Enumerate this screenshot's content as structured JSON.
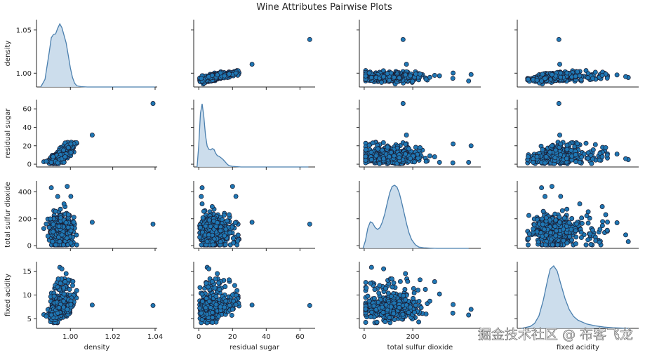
{
  "figure": {
    "title": "Wine Attributes Pairwise Plots",
    "watermark": "掘金技术社区 @ 布客飞龙"
  },
  "chart_data": {
    "type": "pairplot",
    "variables": [
      "density",
      "residual sugar",
      "total sulfur dioxide",
      "fixed acidity"
    ],
    "diag_kind": "kde",
    "colors": {
      "points": "#1f77b4",
      "point_edge": "#1a1a2e",
      "kde_fill": "#c6d9ea",
      "kde_line": "#4a7fae",
      "axis": "#262626"
    },
    "axes": {
      "density": {
        "range": [
          0.984,
          1.041
        ],
        "ticks": [
          1.0,
          1.02,
          1.04
        ],
        "tick_labels": [
          "1.00",
          "1.02",
          "1.04"
        ],
        "y_range": [
          0.984,
          1.062
        ],
        "y_ticks": [
          1.0,
          1.05
        ],
        "y_tick_labels": [
          "1.00",
          "1.05"
        ]
      },
      "residual sugar": {
        "range": [
          -3,
          69
        ],
        "ticks": [
          0,
          20,
          40,
          60
        ],
        "tick_labels": [
          "0",
          "20",
          "40",
          "60"
        ],
        "y_range": [
          -3,
          70
        ],
        "y_ticks": [
          0,
          20,
          40,
          60
        ],
        "y_tick_labels": [
          "0",
          "20",
          "40",
          "60"
        ]
      },
      "total sulfur dioxide": {
        "range": [
          -20,
          480
        ],
        "ticks": [
          0,
          200
        ],
        "tick_labels": [
          "0",
          "200"
        ],
        "y_range": [
          -20,
          480
        ],
        "y_ticks": [
          0,
          200,
          400
        ],
        "y_tick_labels": [
          "0",
          "200",
          "400"
        ]
      },
      "fixed acidity": {
        "range": [
          3.0,
          17.0
        ],
        "ticks": [],
        "tick_labels": [],
        "y_range": [
          3.0,
          17.0
        ],
        "y_ticks": [
          5,
          10,
          15
        ],
        "y_tick_labels": [
          "5",
          "10",
          "15"
        ]
      }
    },
    "kde": {
      "density": {
        "x": [
          0.986,
          0.988,
          0.99,
          0.991,
          0.992,
          0.993,
          0.994,
          0.995,
          0.996,
          0.997,
          0.998,
          0.999,
          1.0,
          1.001,
          1.002,
          1.003,
          1.005,
          1.008,
          1.04
        ],
        "y": [
          0.0,
          0.12,
          0.55,
          0.78,
          0.83,
          0.84,
          0.93,
          1.0,
          0.94,
          0.82,
          0.7,
          0.5,
          0.3,
          0.15,
          0.06,
          0.02,
          0.005,
          0.0,
          0.0
        ]
      },
      "residual sugar": {
        "x": [
          -1,
          0,
          1,
          2,
          3,
          4,
          5,
          6,
          7,
          8,
          9,
          10,
          11,
          12,
          13,
          14,
          15,
          16,
          17,
          18,
          20,
          25,
          30,
          65
        ],
        "y": [
          0.0,
          0.35,
          0.85,
          1.0,
          0.8,
          0.5,
          0.33,
          0.28,
          0.27,
          0.29,
          0.28,
          0.22,
          0.18,
          0.17,
          0.15,
          0.13,
          0.1,
          0.07,
          0.04,
          0.02,
          0.01,
          0.0,
          0.0,
          0.0
        ]
      },
      "total sulfur dioxide": {
        "x": [
          -5,
          5,
          15,
          25,
          35,
          45,
          55,
          65,
          75,
          85,
          95,
          105,
          115,
          125,
          135,
          145,
          155,
          165,
          175,
          185,
          195,
          210,
          225,
          245,
          270,
          300,
          350,
          430
        ],
        "y": [
          0.0,
          0.12,
          0.32,
          0.42,
          0.4,
          0.33,
          0.3,
          0.33,
          0.42,
          0.55,
          0.72,
          0.88,
          0.98,
          1.0,
          0.97,
          0.87,
          0.72,
          0.55,
          0.38,
          0.24,
          0.14,
          0.06,
          0.02,
          0.01,
          0.005,
          0.0,
          0.0,
          0.0
        ]
      },
      "fixed acidity": {
        "x": [
          3.5,
          4.5,
          5.0,
          5.5,
          6.0,
          6.5,
          6.8,
          7.2,
          7.6,
          8.0,
          8.5,
          9.0,
          9.5,
          10.0,
          11.0,
          12.0,
          13.0,
          14.0,
          16.0
        ],
        "y": [
          0.0,
          0.03,
          0.08,
          0.2,
          0.45,
          0.78,
          0.95,
          1.0,
          0.92,
          0.72,
          0.48,
          0.3,
          0.19,
          0.13,
          0.07,
          0.04,
          0.02,
          0.01,
          0.0
        ]
      }
    },
    "outliers": [
      {
        "density": 1.039,
        "residual sugar": 65.8,
        "total sulfur dioxide": 160,
        "fixed acidity": 7.8
      },
      {
        "density": 1.0103,
        "residual sugar": 31.6,
        "total sulfur dioxide": 174,
        "fixed acidity": 7.9
      },
      {
        "density": 0.9985,
        "residual sugar": 20.0,
        "total sulfur dioxide": 440,
        "fixed acidity": 7.0
      },
      {
        "density": 1.0002,
        "residual sugar": 22.0,
        "total sulfur dioxide": 366,
        "fixed acidity": 8.0
      },
      {
        "density": 0.993,
        "residual sugar": 3.0,
        "total sulfur dioxide": 255,
        "fixed acidity": 6.0
      },
      {
        "density": 0.991,
        "residual sugar": 2.0,
        "total sulfur dioxide": 430,
        "fixed acidity": 5.8
      },
      {
        "density": 0.995,
        "residual sugar": 5.0,
        "total sulfur dioxide": 30,
        "fixed acidity": 15.8
      },
      {
        "density": 0.996,
        "residual sugar": 6.0,
        "total sulfur dioxide": 80,
        "fixed acidity": 15.5
      },
      {
        "density": 0.998,
        "residual sugar": 11.0,
        "total sulfur dioxide": 170,
        "fixed acidity": 14.5
      },
      {
        "density": 0.999,
        "residual sugar": 18.0,
        "total sulfur dioxide": 230,
        "fixed acidity": 13.2
      },
      {
        "density": 0.9975,
        "residual sugar": 8.0,
        "total sulfur dioxide": 290,
        "fixed acidity": 12.8
      },
      {
        "density": 0.997,
        "residual sugar": 2.0,
        "total sulfur dioxide": 310,
        "fixed acidity": 10.2
      },
      {
        "density": 0.994,
        "residual sugar": 1.5,
        "total sulfur dioxide": 365,
        "fixed acidity": 6.2
      }
    ]
  }
}
